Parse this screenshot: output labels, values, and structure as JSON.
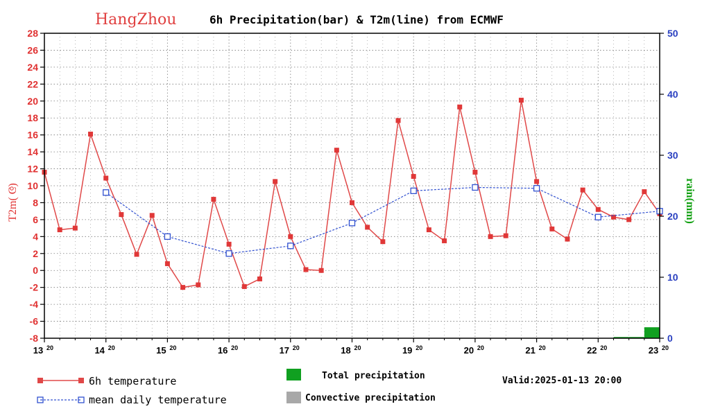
{
  "chart_data": {
    "type": "bar+line",
    "title_city": "HangZhou",
    "title": "6h Precipitation(bar) & T2m(line) from ECMWF",
    "ylabel_left": "T2m(°C)",
    "ylabel_left_display": "T2m(  C)",
    "ylabel_right": "rain(mm)",
    "ylim_left": [
      -8,
      28
    ],
    "ylim_right": [
      0,
      50
    ],
    "left_ticks": [
      -8,
      -6,
      -4,
      -2,
      0,
      2,
      4,
      6,
      8,
      10,
      12,
      14,
      16,
      18,
      20,
      22,
      24,
      26,
      28
    ],
    "right_ticks": [
      0,
      10,
      20,
      30,
      40,
      50
    ],
    "xlim": [
      0,
      40
    ],
    "x_ticks": [
      {
        "x": 0,
        "day": "13",
        "sup": "20"
      },
      {
        "x": 4,
        "day": "14",
        "sup": "20"
      },
      {
        "x": 8,
        "day": "15",
        "sup": "20"
      },
      {
        "x": 12,
        "day": "16",
        "sup": "20"
      },
      {
        "x": 16,
        "day": "17",
        "sup": "20"
      },
      {
        "x": 20,
        "day": "18",
        "sup": "20"
      },
      {
        "x": 24,
        "day": "19",
        "sup": "20"
      },
      {
        "x": 28,
        "day": "20",
        "sup": "20"
      },
      {
        "x": 32,
        "day": "21",
        "sup": "20"
      },
      {
        "x": 36,
        "day": "22",
        "sup": "20"
      },
      {
        "x": 40,
        "day": "23",
        "sup": "20"
      }
    ],
    "series": [
      {
        "name": "6h temperature",
        "color": "#e04848",
        "values": [
          11.6,
          4.8,
          5.0,
          16.1,
          10.9,
          6.6,
          1.9,
          6.5,
          0.8,
          -2.0,
          -1.7,
          8.4,
          3.1,
          -1.9,
          -1.0,
          10.5,
          4.0,
          0.1,
          0.0,
          14.2,
          8.0,
          5.1,
          3.4,
          17.7,
          11.1,
          4.8,
          3.5,
          19.3,
          11.6,
          4.0,
          4.1,
          20.1,
          10.5,
          4.9,
          3.7,
          9.5,
          7.2,
          6.3,
          6.0,
          9.3,
          6.7
        ]
      },
      {
        "name": "mean daily temperature",
        "color": "#3050d0",
        "x": [
          4,
          8,
          12,
          16,
          20,
          24,
          28,
          32,
          36,
          40
        ],
        "values": [
          9.2,
          4.0,
          2.0,
          2.9,
          5.6,
          9.4,
          9.8,
          9.7,
          6.3,
          7.0
        ]
      },
      {
        "name": "Total precipitation",
        "color": "#10a020",
        "x": [
          38,
          39,
          40
        ],
        "values": [
          0.2,
          0.2,
          1.8
        ]
      },
      {
        "name": "Convective precipitation",
        "color": "#a8a8a8",
        "x": [],
        "values": []
      }
    ]
  },
  "legend": {
    "temp_label": "6h temperature",
    "mean_label": "mean daily temperature",
    "total_precip_label": "Total precipitation",
    "conv_precip_label": "Convective precipitation",
    "valid_label": "Valid:2025-01-13 20:00"
  }
}
